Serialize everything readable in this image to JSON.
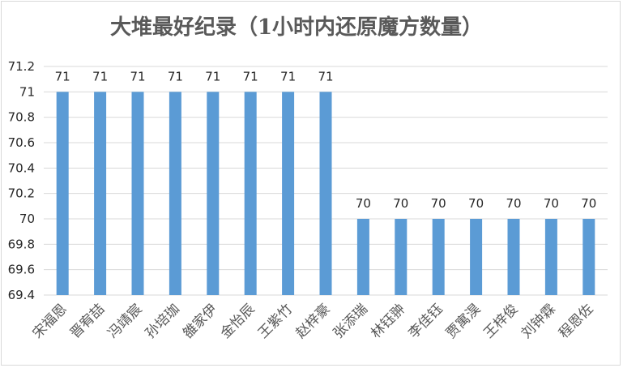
{
  "chart_data": {
    "type": "bar",
    "title": "大堆最好纪录（1小时内还原魔方数量）",
    "xlabel": "",
    "ylabel": "",
    "ylim": [
      69.4,
      71.2
    ],
    "yticks": [
      "69.4",
      "69.6",
      "69.8",
      "70",
      "70.2",
      "70.4",
      "70.6",
      "70.8",
      "71",
      "71.2"
    ],
    "grid": true,
    "legend": "none",
    "bar_color": "#5b9bd5",
    "categories": [
      "宋福恩",
      "晋宥喆",
      "冯靖宸",
      "孙培珈",
      "雒家伊",
      "金怡辰",
      "王紫竹",
      "赵梓豪",
      "张添瑞",
      "林钰翀",
      "李佳钰",
      "贾寓淏",
      "王梓俊",
      "刘钟霖",
      "程恩佐"
    ],
    "values": [
      71,
      71,
      71,
      71,
      71,
      71,
      71,
      71,
      70,
      70,
      70,
      70,
      70,
      70,
      70
    ]
  }
}
